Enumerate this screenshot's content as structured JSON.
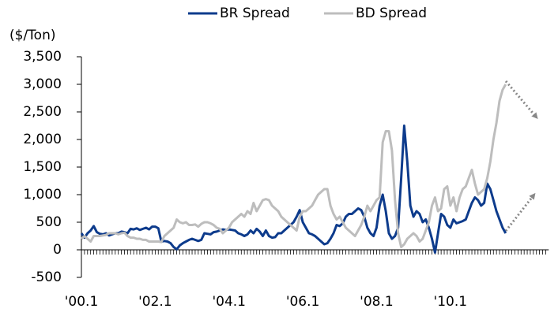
{
  "chart_data": {
    "type": "line",
    "y_axis_label": "($/Ton)",
    "categories": [
      "'00.1",
      null,
      null,
      null,
      null,
      null,
      null,
      null,
      null,
      null,
      null,
      null,
      null,
      null,
      null,
      null,
      null,
      null,
      null,
      null,
      null,
      null,
      null,
      null,
      "'02.1",
      null,
      null,
      null,
      null,
      null,
      null,
      null,
      null,
      null,
      null,
      null,
      null,
      null,
      null,
      null,
      null,
      null,
      null,
      null,
      null,
      null,
      null,
      null,
      "'04.1",
      null,
      null,
      null,
      null,
      null,
      null,
      null,
      null,
      null,
      null,
      null,
      null,
      null,
      null,
      null,
      null,
      null,
      null,
      null,
      null,
      null,
      null,
      null,
      "'06.1",
      null,
      null,
      null,
      null,
      null,
      null,
      null,
      null,
      null,
      null,
      null,
      null,
      null,
      null,
      null,
      null,
      null,
      null,
      null,
      null,
      null,
      null,
      null,
      "'08.1",
      null,
      null,
      null,
      null,
      null,
      null,
      null,
      null,
      null,
      null,
      null,
      null,
      null,
      null,
      null,
      null,
      null,
      null,
      null,
      null,
      null,
      null,
      null,
      "'10.1",
      null,
      null,
      null,
      null,
      null,
      null,
      null,
      null,
      null,
      null,
      null,
      null,
      null,
      null,
      null,
      null,
      null,
      null,
      null,
      null,
      null,
      null,
      null,
      null,
      null,
      null,
      null,
      null,
      null,
      null,
      null
    ],
    "series": [
      {
        "name": "BR Spread",
        "color": "#0d3b8c",
        "values": [
          300,
          220,
          300,
          350,
          430,
          320,
          290,
          280,
          300,
          260,
          280,
          300,
          300,
          330,
          320,
          300,
          380,
          370,
          390,
          360,
          380,
          400,
          370,
          420,
          420,
          390,
          150,
          160,
          150,
          120,
          50,
          10,
          80,
          120,
          150,
          180,
          200,
          180,
          160,
          180,
          300,
          290,
          280,
          320,
          330,
          350,
          370,
          360,
          370,
          360,
          350,
          300,
          280,
          250,
          280,
          350,
          300,
          380,
          330,
          250,
          350,
          250,
          220,
          230,
          300,
          300,
          350,
          400,
          450,
          500,
          600,
          720,
          500,
          400,
          300,
          280,
          250,
          200,
          150,
          100,
          120,
          200,
          300,
          450,
          430,
          480,
          600,
          650,
          650,
          700,
          750,
          720,
          600,
          400,
          300,
          250,
          400,
          800,
          1000,
          700,
          300,
          200,
          250,
          400,
          1300,
          2250,
          1600,
          800,
          600,
          700,
          650,
          500,
          550,
          400,
          200,
          -50,
          300,
          650,
          600,
          450,
          400,
          550,
          480,
          500,
          520,
          550,
          700,
          850,
          950,
          900,
          800,
          850,
          1200,
          1100,
          900,
          700,
          550,
          400,
          300,
          null,
          null,
          null,
          null,
          null,
          null,
          null,
          null,
          null,
          null,
          null,
          null,
          null
        ]
      },
      {
        "name": "BD Spread",
        "color": "#bdbdbd",
        "values": [
          200,
          250,
          200,
          150,
          250,
          250,
          250,
          260,
          270,
          300,
          300,
          300,
          280,
          300,
          310,
          250,
          220,
          220,
          200,
          200,
          180,
          180,
          150,
          150,
          150,
          150,
          140,
          250,
          300,
          350,
          400,
          550,
          500,
          480,
          500,
          450,
          450,
          460,
          420,
          470,
          500,
          500,
          480,
          450,
          400,
          380,
          300,
          350,
          400,
          500,
          550,
          600,
          650,
          600,
          700,
          650,
          850,
          700,
          800,
          900,
          920,
          900,
          800,
          750,
          700,
          600,
          550,
          500,
          450,
          400,
          350,
          600,
          700,
          700,
          750,
          800,
          900,
          1000,
          1050,
          1100,
          1100,
          800,
          650,
          550,
          600,
          500,
          400,
          350,
          300,
          250,
          350,
          450,
          600,
          800,
          700,
          800,
          900,
          950,
          1950,
          2150,
          2150,
          1800,
          900,
          300,
          50,
          100,
          200,
          250,
          300,
          250,
          150,
          200,
          350,
          500,
          800,
          950,
          700,
          750,
          1100,
          1150,
          800,
          950,
          700,
          950,
          1100,
          1150,
          1300,
          1450,
          1200,
          1000,
          1050,
          1100,
          1300,
          1600,
          2000,
          2300,
          2700,
          2900,
          3000,
          null,
          null,
          null,
          null,
          null,
          null,
          null,
          null,
          null,
          null,
          null,
          null,
          null
        ]
      }
    ],
    "ylim": [
      -500,
      3500
    ],
    "yticks": [
      -500,
      0,
      500,
      {
        "value": 1000,
        "label": "1,000"
      },
      {
        "value": 1500,
        "label": "1,500"
      },
      {
        "value": 2000,
        "label": "2,000"
      },
      {
        "value": 2500,
        "label": "2,500"
      },
      {
        "value": 3000,
        "label": "3,000"
      },
      {
        "value": 3500,
        "label": "3,500"
      }
    ],
    "legend": "top"
  }
}
